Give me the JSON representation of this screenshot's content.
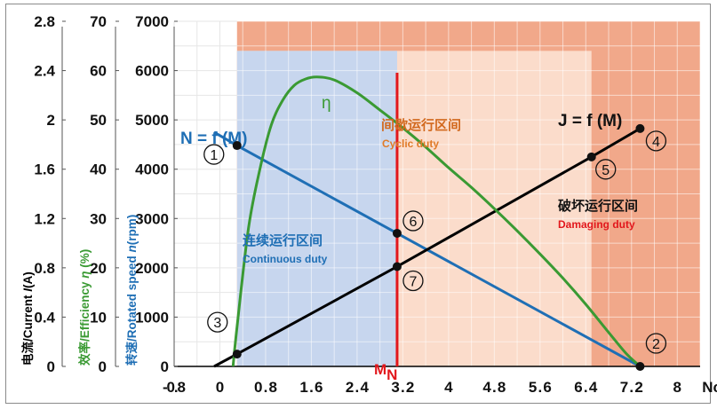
{
  "chart_data": {
    "type": "line",
    "x_axis": {
      "min": -0.8,
      "max": 8.4,
      "ticks": [
        "-0.8",
        "0",
        "0.8",
        "1.6",
        "2.4",
        "3.2",
        "4",
        "4.8",
        "5.6",
        "6.4",
        "7.2",
        "8"
      ],
      "unit": "Ncm"
    },
    "y_axes": [
      {
        "id": "current",
        "label_cn": "电流",
        "label_en": "/Current ",
        "label_sym": "I",
        "label_unit": "(A)",
        "color": "#000000",
        "min": 0,
        "max": 2.8,
        "ticks": [
          "0",
          "0.4",
          "0.8",
          "1.2",
          "1.6",
          "2",
          "2.4",
          "2.8"
        ]
      },
      {
        "id": "efficiency",
        "label_cn": "效率",
        "label_en": "/Efficiency ",
        "label_sym": "η",
        "label_unit": " (%)",
        "color": "#3a9a33",
        "min": 0,
        "max": 70,
        "ticks": [
          "0",
          "10",
          "20",
          "30",
          "40",
          "50",
          "60",
          "70"
        ]
      },
      {
        "id": "speed",
        "label_cn": "转速",
        "label_en": "/Rotated speed ",
        "label_sym": "n",
        "label_unit": "(rpm)",
        "color": "#1f6fb5",
        "min": 0,
        "max": 7000,
        "ticks": [
          "0",
          "1000",
          "2000",
          "3000",
          "4000",
          "5000",
          "6000",
          "7000"
        ]
      }
    ],
    "regions": [
      {
        "name_cn": "连续运行区间",
        "name_en": "Continuous duty",
        "x": [
          0.3,
          3.1
        ],
        "y": [
          0,
          6400
        ],
        "color": "#c7d6ee",
        "text_color": "#1f6fb5"
      },
      {
        "name_cn": "间歇运行区间",
        "name_en": "Cyclic duty",
        "x": [
          3.1,
          6.5
        ],
        "y": [
          0,
          6400
        ],
        "color": "#fbdccb",
        "text_color": "#e07b28"
      },
      {
        "name_cn": "破坏运行区间",
        "name_en": "Damaging duty",
        "x": [
          0.3,
          8.4
        ],
        "y": [
          0,
          7000
        ],
        "color": "#f1a88a",
        "text_color": "#e2171c"
      }
    ],
    "series": [
      {
        "name": "N = f (M)",
        "axis": "speed",
        "color": "#1f6fb5",
        "points": [
          [
            -0.1,
            4750
          ],
          [
            0.3,
            4480
          ],
          [
            3.1,
            2700
          ],
          [
            7.35,
            0
          ]
        ]
      },
      {
        "name": "J = f (M)",
        "axis": "current",
        "color": "#000000",
        "points": [
          [
            -0.1,
            0
          ],
          [
            0.3,
            0.1
          ],
          [
            3.1,
            0.81
          ],
          [
            6.5,
            1.7
          ],
          [
            7.35,
            1.93
          ]
        ]
      },
      {
        "name": "η",
        "axis": "efficiency",
        "color": "#3a9a33",
        "points": [
          [
            0.23,
            0
          ],
          [
            0.3,
            8
          ],
          [
            0.5,
            28
          ],
          [
            0.7,
            40
          ],
          [
            0.9,
            49
          ],
          [
            1.1,
            54
          ],
          [
            1.3,
            57
          ],
          [
            1.5,
            58.3
          ],
          [
            1.7,
            58.7
          ],
          [
            2.0,
            58.1
          ],
          [
            2.4,
            55.5
          ],
          [
            2.8,
            52
          ],
          [
            3.2,
            48.4
          ],
          [
            3.6,
            44.5
          ],
          [
            4.0,
            40.3
          ],
          [
            4.4,
            36.3
          ],
          [
            4.8,
            32
          ],
          [
            5.2,
            27.5
          ],
          [
            5.6,
            22.8
          ],
          [
            6.0,
            17.9
          ],
          [
            6.4,
            12.6
          ],
          [
            6.8,
            6.9
          ],
          [
            7.1,
            2.7
          ],
          [
            7.3,
            0.5
          ]
        ]
      }
    ],
    "rated_torque": {
      "x": 3.1,
      "label": "M",
      "sub": "N",
      "color": "#e2171c"
    },
    "markers": [
      {
        "id": "1",
        "x": 0.3,
        "y": 4480,
        "axis": "speed"
      },
      {
        "id": "2",
        "x": 7.35,
        "y": 0,
        "axis": "speed"
      },
      {
        "id": "3",
        "x": 0.3,
        "y": 0.1,
        "axis": "current"
      },
      {
        "id": "4",
        "x": 7.35,
        "y": 1.93,
        "axis": "current"
      },
      {
        "id": "5",
        "x": 6.5,
        "y": 1.7,
        "axis": "current"
      },
      {
        "id": "6",
        "x": 3.1,
        "y": 2700,
        "axis": "speed"
      },
      {
        "id": "7",
        "x": 3.1,
        "y": 0.81,
        "axis": "current"
      }
    ],
    "marker_labels": [
      "①",
      "②",
      "③",
      "④",
      "⑤",
      "⑥",
      "⑦"
    ]
  }
}
